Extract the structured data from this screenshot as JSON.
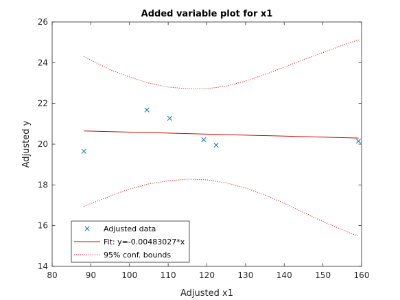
{
  "chart_data": {
    "type": "scatter",
    "title": "Added variable plot for x1",
    "xlabel": "Adjusted x1",
    "ylabel": "Adjusted y",
    "xlim": [
      80,
      160
    ],
    "ylim": [
      14,
      26
    ],
    "xticks": [
      80,
      90,
      100,
      110,
      120,
      130,
      140,
      150,
      160
    ],
    "yticks": [
      14,
      16,
      18,
      20,
      22,
      24,
      26
    ],
    "grid": false,
    "legend_position": "bottom-left",
    "series": [
      {
        "name": "Adjusted data",
        "kind": "scatter",
        "marker": "x",
        "color": "#0072BD",
        "x": [
          88.2,
          104.5,
          110.4,
          119.2,
          122.4,
          159.2
        ],
        "y": [
          19.65,
          21.68,
          21.27,
          20.22,
          19.95,
          20.15
        ]
      },
      {
        "name": "Fit: y=-0.00483027*x",
        "kind": "line",
        "style": "solid",
        "color": "#D00000",
        "x": [
          88.2,
          159.2
        ],
        "y": [
          20.65,
          20.3
        ]
      },
      {
        "name": "95% conf. bounds",
        "kind": "line",
        "style": "dotted",
        "color": "#D00000",
        "x_upper": [
          88.2,
          95,
          100,
          105,
          110,
          115,
          120,
          125,
          130,
          135,
          140,
          145,
          150,
          155,
          159.2
        ],
        "y_upper": [
          24.3,
          23.65,
          23.3,
          23.0,
          22.8,
          22.72,
          22.72,
          22.85,
          23.1,
          23.42,
          23.78,
          24.15,
          24.5,
          24.85,
          25.12
        ],
        "x_lower": [
          88.2,
          95,
          100,
          105,
          110,
          115,
          120,
          125,
          130,
          135,
          140,
          145,
          150,
          155,
          159.2
        ],
        "y_lower": [
          16.95,
          17.45,
          17.8,
          18.05,
          18.2,
          18.28,
          18.25,
          18.1,
          17.85,
          17.5,
          17.1,
          16.65,
          16.2,
          15.8,
          15.48
        ]
      }
    ]
  }
}
